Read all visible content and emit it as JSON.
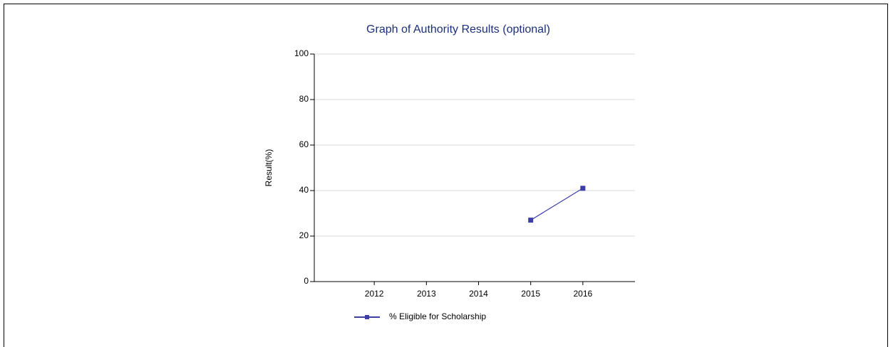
{
  "chart_data": {
    "type": "line",
    "title": "Graph of Authority Results (optional)",
    "ylabel": "Result(%)",
    "x": [
      2012,
      2013,
      2014,
      2015,
      2016
    ],
    "xlim": [
      2010.85,
      2017
    ],
    "xticks": [
      2012,
      2013,
      2014,
      2015,
      2016
    ],
    "ylim": [
      0,
      100
    ],
    "yticks": [
      0,
      20,
      40,
      60,
      80,
      100
    ],
    "grid": true,
    "series": [
      {
        "name": "% Eligible for Scholarship",
        "color": "#3d3da8",
        "values": [
          null,
          null,
          null,
          27,
          41
        ]
      }
    ]
  }
}
